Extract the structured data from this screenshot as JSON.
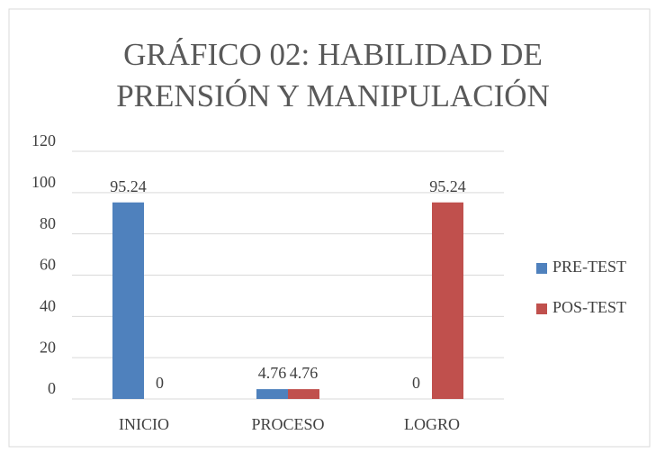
{
  "chart_data": {
    "type": "bar",
    "title": "GRÁFICO 02: HABILIDAD DE PRENSIÓN Y MANIPULACIÓN",
    "categories": [
      "INICIO",
      "PROCESO",
      "LOGRO"
    ],
    "series": [
      {
        "name": "PRE-TEST",
        "color": "#4f81bd",
        "values": [
          95.24,
          4.76,
          0
        ]
      },
      {
        "name": "POS-TEST",
        "color": "#c0504d",
        "values": [
          0,
          4.76,
          95.24
        ]
      }
    ],
    "ylim": [
      0,
      120
    ],
    "yticks": [
      0,
      20,
      40,
      60,
      80,
      100,
      120
    ],
    "grid": true,
    "legend": "right"
  }
}
